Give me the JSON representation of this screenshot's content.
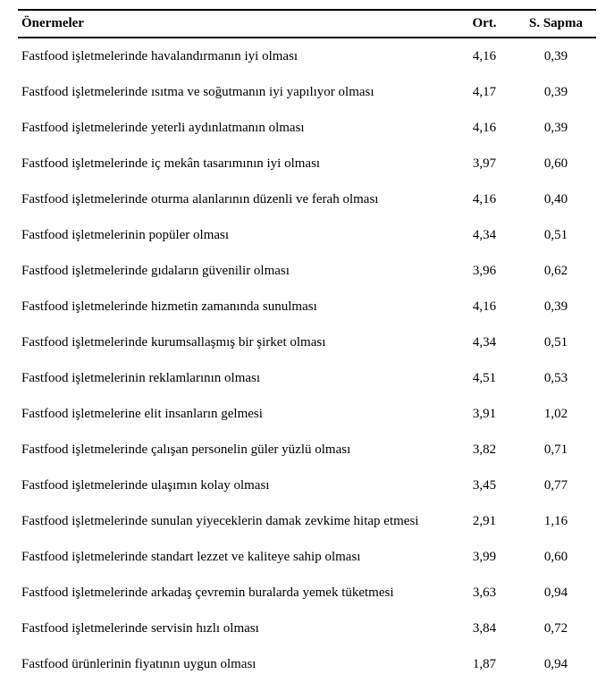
{
  "table": {
    "headers": {
      "label": "Önermeler",
      "ort": "Ort.",
      "ss": "S. Sapma"
    },
    "rows": [
      {
        "label": "Fastfood işletmelerinde havalandırmanın iyi olması",
        "ort": "4,16",
        "ss": "0,39"
      },
      {
        "label": "Fastfood işletmelerinde ısıtma ve soğutmanın iyi yapılıyor olması",
        "ort": "4,17",
        "ss": "0,39"
      },
      {
        "label": "Fastfood işletmelerinde yeterli aydınlatmanın olması",
        "ort": "4,16",
        "ss": "0,39"
      },
      {
        "label": "Fastfood işletmelerinde iç mekân tasarımının iyi olması",
        "ort": "3,97",
        "ss": "0,60"
      },
      {
        "label": "Fastfood işletmelerinde oturma alanlarının düzenli ve ferah olması",
        "ort": "4,16",
        "ss": "0,40"
      },
      {
        "label": "Fastfood işletmelerinin popüler olması",
        "ort": "4,34",
        "ss": "0,51"
      },
      {
        "label": "Fastfood işletmelerinde gıdaların güvenilir olması",
        "ort": "3,96",
        "ss": "0,62"
      },
      {
        "label": "Fastfood işletmelerinde hizmetin zamanında sunulması",
        "ort": "4,16",
        "ss": "0,39"
      },
      {
        "label": "Fastfood işletmelerinde kurumsallaşmış bir şirket olması",
        "ort": "4,34",
        "ss": "0,51"
      },
      {
        "label": "Fastfood işletmelerinin reklamlarının olması",
        "ort": "4,51",
        "ss": "0,53"
      },
      {
        "label": "Fastfood işletmelerine elit insanların gelmesi",
        "ort": "3,91",
        "ss": "1,02"
      },
      {
        "label": "Fastfood işletmelerinde çalışan personelin güler yüzlü olması",
        "ort": "3,82",
        "ss": "0,71"
      },
      {
        "label": "Fastfood işletmelerinde ulaşımın kolay olması",
        "ort": "3,45",
        "ss": "0,77"
      },
      {
        "label": "Fastfood işletmelerinde sunulan yiyeceklerin damak zevkime hitap etmesi",
        "ort": "2,91",
        "ss": "1,16"
      },
      {
        "label": "Fastfood işletmelerinde standart lezzet ve kaliteye sahip olması",
        "ort": "3,99",
        "ss": "0,60"
      },
      {
        "label": "Fastfood işletmelerinde arkadaş çevremin buralarda yemek tüketmesi",
        "ort": "3,63",
        "ss": "0,94"
      },
      {
        "label": "Fastfood işletmelerinde servisin hızlı olması",
        "ort": "3,84",
        "ss": "0,72"
      },
      {
        "label": "Fastfood ürünlerinin fiyatının uygun olması",
        "ort": "1,87",
        "ss": "0,94"
      }
    ]
  }
}
